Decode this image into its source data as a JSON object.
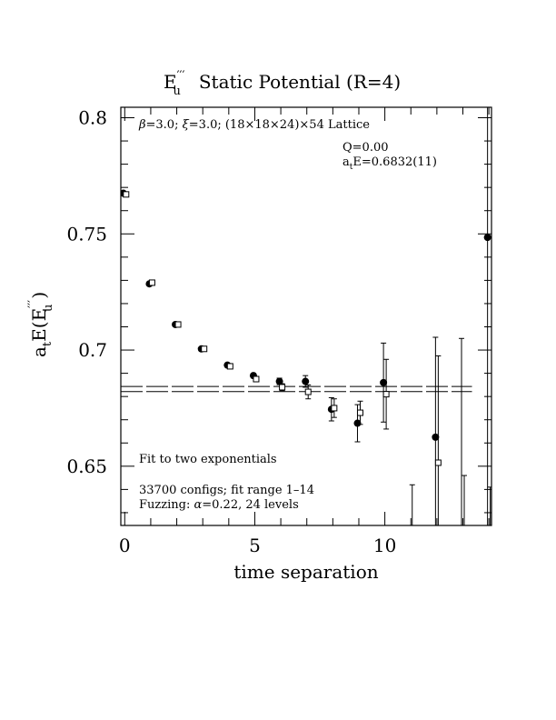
{
  "chart_data": {
    "type": "scatter",
    "title_main": "E",
    "title_sup": "′′′",
    "title_sub": "u",
    "title_rest": "Static Potential (R=4)",
    "ylabel_a": "a",
    "ylabel_t": "t",
    "ylabel_E": "E(E",
    "ylabel_sup": "′′′",
    "ylabel_sub": "u",
    "ylabel_close": ")",
    "xlabel": "time separation",
    "xlim": [
      -0.15,
      14.1
    ],
    "ylim": [
      0.6245,
      0.8045
    ],
    "x_ticks": [
      "0",
      "5",
      "10"
    ],
    "y_ticks": [
      "0.65",
      "0.7",
      "0.75",
      "0.8"
    ],
    "annotations": {
      "lattice_beta": "β",
      "lattice_text1": "=3.0; ",
      "lattice_xi": "ξ",
      "lattice_text2": "=3.0; (18×18×24)×54 Lattice",
      "q_value": "Q=0.00",
      "energy_a": "a",
      "energy_t": "t",
      "energy_rest": "E=0.6832(11)",
      "fit_label": "Fit to two exponentials",
      "configs": "33700 configs; fit range 1–14",
      "fuzz_pre": "Fuzzing: ",
      "fuzz_alpha": "α",
      "fuzz_post": "=0.22, 24 levels"
    },
    "fit": {
      "value": 0.6832,
      "error": 0.0011,
      "x_range": [
        -0.15,
        13.35
      ],
      "style": "dashed double band"
    },
    "series": [
      {
        "marker": "filled-circle",
        "points": [
          {
            "x": 0,
            "y": 0.7675,
            "err": 0.0005
          },
          {
            "x": 1,
            "y": 0.7285,
            "err": 0.0005
          },
          {
            "x": 2,
            "y": 0.711,
            "err": 0.0005
          },
          {
            "x": 3,
            "y": 0.7005,
            "err": 0.0007
          },
          {
            "x": 4,
            "y": 0.6935,
            "err": 0.0008
          },
          {
            "x": 5,
            "y": 0.689,
            "err": 0.001
          },
          {
            "x": 6,
            "y": 0.6865,
            "err": 0.0014
          },
          {
            "x": 7,
            "y": 0.6865,
            "err": 0.0025
          },
          {
            "x": 8,
            "y": 0.6745,
            "err": 0.005
          },
          {
            "x": 9,
            "y": 0.6685,
            "err": 0.008
          },
          {
            "x": 10,
            "y": 0.686,
            "err": 0.017
          },
          {
            "x": 12,
            "y": 0.6625,
            "err": 0.043
          },
          {
            "x": 13,
            "y": 0.62,
            "err": 0.085
          },
          {
            "x": 14,
            "y": 0.7485,
            "err": 0.2
          }
        ]
      },
      {
        "marker": "open-square",
        "points": [
          {
            "x": 0,
            "y": 0.767,
            "err": 0.0005
          },
          {
            "x": 1,
            "y": 0.729,
            "err": 0.0005
          },
          {
            "x": 2,
            "y": 0.711,
            "err": 0.0005
          },
          {
            "x": 3,
            "y": 0.7005,
            "err": 0.0006
          },
          {
            "x": 4,
            "y": 0.693,
            "err": 0.0008
          },
          {
            "x": 5,
            "y": 0.6875,
            "err": 0.0011
          },
          {
            "x": 6,
            "y": 0.684,
            "err": 0.0015
          },
          {
            "x": 7,
            "y": 0.682,
            "err": 0.003
          },
          {
            "x": 8,
            "y": 0.675,
            "err": 0.004
          },
          {
            "x": 9,
            "y": 0.673,
            "err": 0.005
          },
          {
            "x": 10,
            "y": 0.681,
            "err": 0.015
          },
          {
            "x": 11,
            "y": 0.62,
            "err": 0.022
          },
          {
            "x": 12,
            "y": 0.6515,
            "err": 0.046
          },
          {
            "x": 13,
            "y": 0.62,
            "err": 0.026
          },
          {
            "x": 14,
            "y": 0.62,
            "err": 0.021
          }
        ]
      }
    ]
  }
}
